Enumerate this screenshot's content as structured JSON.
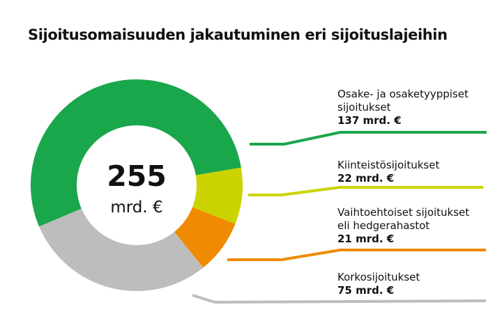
{
  "title": "Sijoitusomaisuuden jakautuminen eri sijoituslajeihin",
  "center": {
    "value": "255",
    "unit": "mrd. €"
  },
  "chart_data": {
    "type": "pie",
    "title": "Sijoitusomaisuuden jakautuminen eri sijoituslajeihin",
    "total": 255,
    "unit": "mrd. €",
    "categories": [
      "Osake- ja osaketyyppiset sijoitukset",
      "Kiinteistösijoitukset",
      "Vaihtoehtoiset sijoitukset eli hedgerahastot",
      "Korkosijoitukset"
    ],
    "values": [
      137,
      22,
      21,
      75
    ],
    "colors": [
      "#1aa64b",
      "#cbd400",
      "#f08a00",
      "#bdbdbd"
    ],
    "value_labels": [
      "137 mrd. €",
      "22 mrd. €",
      "21 mrd. €",
      "75 mrd. €"
    ]
  },
  "labels": [
    {
      "name": "Osake- ja osaketyyppiset\nsijoitukset",
      "value": "137 mrd. €"
    },
    {
      "name": "Kiinteistösijoitukset",
      "value": "22 mrd. €"
    },
    {
      "name": "Vaihtoehtoiset sijoitukset\neli hedgerahastot",
      "value": "21 mrd. €"
    },
    {
      "name": "Korkosijoitukset",
      "value": "75 mrd. €"
    }
  ]
}
